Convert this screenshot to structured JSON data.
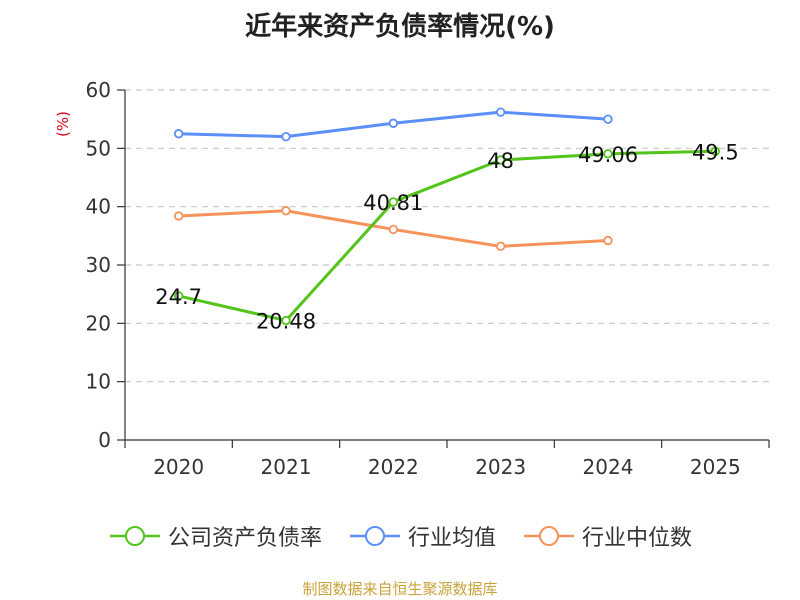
{
  "chart_data": {
    "type": "line",
    "title": "近年来资产负债率情况(%)",
    "ylabel": "(%)",
    "xlabel": "",
    "categories": [
      "2020",
      "2021",
      "2022",
      "2023",
      "2024",
      "2025"
    ],
    "ylim": [
      0,
      60
    ],
    "yticks": [
      0,
      10,
      20,
      30,
      40,
      50,
      60
    ],
    "grid": true,
    "legend_position": "bottom",
    "series": [
      {
        "name": "公司资产负债率",
        "color": "#52c41a",
        "values": [
          24.7,
          20.48,
          40.81,
          48,
          49.06,
          49.5
        ],
        "labels": [
          "24.7",
          "20.48",
          "40.81",
          "48",
          "49.06",
          "49.5"
        ]
      },
      {
        "name": "行业均值",
        "color": "#5b8ff9",
        "values": [
          52.5,
          52.0,
          54.3,
          56.2,
          55.0,
          null
        ]
      },
      {
        "name": "行业中位数",
        "color": "#f6935c",
        "values": [
          38.4,
          39.3,
          36.1,
          33.2,
          34.2,
          null
        ]
      }
    ]
  },
  "footer": {
    "source": "制图数据来自恒生聚源数据库"
  }
}
